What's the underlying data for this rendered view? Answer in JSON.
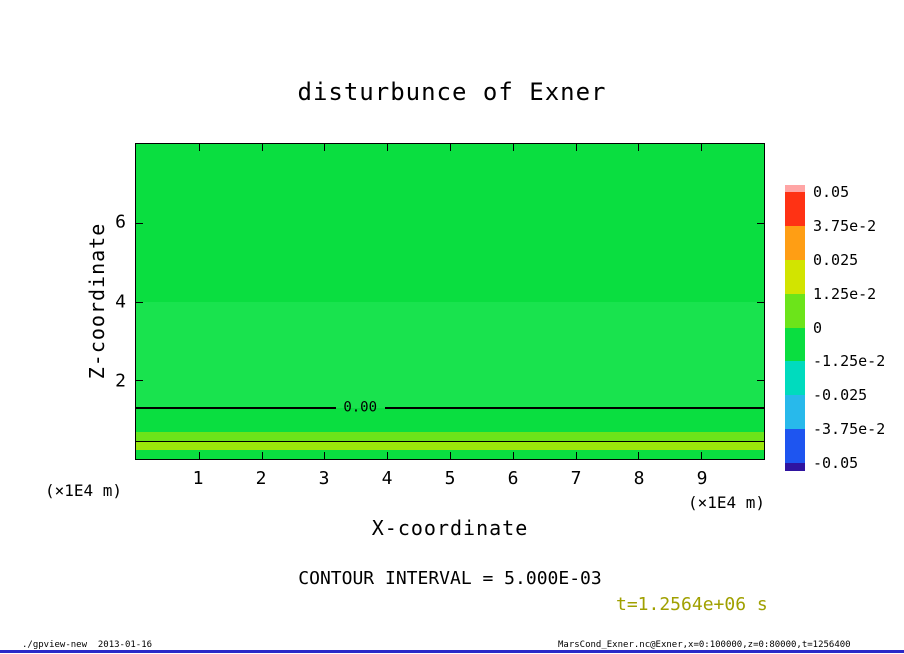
{
  "title": "disturbunce of Exner",
  "axes": {
    "x_label": "X-coordinate",
    "y_label": "Z-coordinate",
    "x_unit": "(×1E4 m)",
    "y_unit": "(×1E4 m)"
  },
  "contour_interval_text": "CONTOUR INTERVAL = 5.000E-03",
  "time_text": "t=1.2564e+06 s",
  "time_color": "#A0A000",
  "footer": {
    "left": "./gpview-new  2013-01-16",
    "right": "MarsCond_Exner.nc@Exner,x=0:100000,z=0:80000,t=1256400",
    "line_color": "#2A2AC8"
  },
  "chart_data": {
    "type": "heatmap",
    "subtype": "filled-contour-tone-plot",
    "title": "disturbunce of Exner",
    "xlabel": "X-coordinate",
    "ylabel": "Z-coordinate",
    "x_unit_scale": "(×1E4 m)",
    "z_unit_scale": "(×1E4 m)",
    "xlim": [
      0,
      10
    ],
    "zlim": [
      0,
      8
    ],
    "x_ticks": [
      1,
      2,
      3,
      4,
      5,
      6,
      7,
      8,
      9
    ],
    "z_ticks": [
      2,
      4,
      6
    ],
    "grid": false,
    "legend_position": "colorbar-right",
    "contour_interval": 0.005,
    "time_seconds": 1256400,
    "bands": [
      {
        "from_frac": 0.0,
        "to_frac": 0.5,
        "z_from": 8.0,
        "z_to": 4.0,
        "approx_level": "≈0 (0 to -5e-3)",
        "color": "#0ADE40"
      },
      {
        "from_frac": 0.5,
        "to_frac": 0.839,
        "z_from": 4.0,
        "z_to": 1.35,
        "approx_level": "≈0 (just below 0)",
        "color": "#19E34E"
      },
      {
        "from_frac": 0.839,
        "to_frac": 0.915,
        "z_from": 1.35,
        "z_to": 0.7,
        "approx_level": "0 to +5e-3",
        "color": "#0ADE40"
      },
      {
        "from_frac": 0.915,
        "to_frac": 0.946,
        "z_from": 0.7,
        "z_to": 0.45,
        "approx_level": "+5e-3",
        "color": "#6CE41A"
      },
      {
        "from_frac": 0.946,
        "to_frac": 0.972,
        "z_from": 0.45,
        "z_to": 0.25,
        "approx_level": "+5e-3 to +1e-2",
        "color": "#9CE70B"
      },
      {
        "from_frac": 0.972,
        "to_frac": 1.0,
        "z_from": 0.25,
        "z_to": 0.0,
        "approx_level": "≈0",
        "color": "#0ADE40"
      }
    ],
    "contours": [
      {
        "frac": 0.839,
        "z": 1.35,
        "value": 0.0,
        "label": "0.00",
        "label_x_frac": 0.357,
        "label_gap": [
          0.318,
          0.396
        ],
        "thickness": 2
      },
      {
        "frac": 0.946,
        "z": 0.45,
        "value": 0.005,
        "label": null,
        "thickness": 1
      }
    ],
    "colorbar": {
      "labels": [
        "0.05",
        "3.75e-2",
        "0.025",
        "1.25e-2",
        "0",
        "-1.25e-2",
        "-0.025",
        "-3.75e-2",
        "-0.05"
      ],
      "colors": [
        "#FFA5A5",
        "#FF3214",
        "#FF9E14",
        "#D2E400",
        "#6CE41A",
        "#0ADE40",
        "#00DBBE",
        "#28B9EB",
        "#1E55F0",
        "#2F14A0"
      ]
    }
  }
}
